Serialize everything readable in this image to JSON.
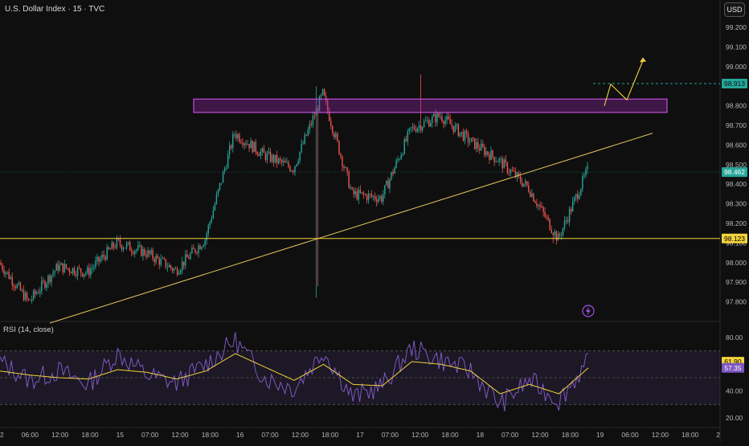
{
  "header": {
    "title": "U.S. Dollar Index · 15 · TVC",
    "currency": "USD"
  },
  "rsi": {
    "title": "RSI (14, close)",
    "levels": [
      80,
      70,
      50,
      30
    ],
    "ticks": [
      "80.00",
      "60.00",
      "40.00",
      "20.00"
    ],
    "value_label": "61.90",
    "ma_label": "57.35",
    "value_color": "#f2d33b",
    "ma_color": "#7e57c2"
  },
  "price_axis": {
    "ticks": [
      "99.200",
      "99.100",
      "99.000",
      "98.900",
      "98.800",
      "98.700",
      "98.600",
      "98.500",
      "98.400",
      "98.300",
      "98.200",
      "98.100",
      "98.000",
      "97.900",
      "97.800"
    ]
  },
  "time_axis": {
    "ticks": [
      "2",
      "06:00",
      "12:00",
      "18:00",
      "15",
      "07:00",
      "12:00",
      "18:00",
      "16",
      "07:00",
      "12:00",
      "18:00",
      "17",
      "07:00",
      "12:00",
      "18:00",
      "18",
      "07:00",
      "12:00",
      "18:00",
      "19",
      "06:00",
      "12:00",
      "18:00",
      "2"
    ]
  },
  "price_labels": {
    "target": "98.913",
    "current": "98.462",
    "support": "98.123"
  },
  "colors": {
    "up": "#26a69a",
    "down": "#ef5350",
    "support_line": "#f2d33b",
    "trend_line": "#e3c460",
    "zone": "#9c27b0",
    "target_tag": "#26a69a",
    "current_tag": "#26a69a"
  },
  "chart_data": [
    {
      "type": "candlestick",
      "title": "U.S. Dollar Index · 15 · TVC",
      "ylim": [
        97.7,
        99.25
      ],
      "close_path": {
        "x": [
          "2",
          "06:00",
          "12:00",
          "18:00",
          "15",
          "07:00",
          "12:00",
          "18:00",
          "16",
          "07:00",
          "12:00",
          "18:00",
          "17",
          "07:00",
          "12:00",
          "18:00",
          "18",
          "07:00",
          "12:00",
          "18:00",
          "19"
        ],
        "y": [
          98.0,
          97.8,
          97.98,
          97.95,
          98.1,
          98.05,
          97.96,
          98.12,
          98.66,
          98.55,
          98.48,
          98.86,
          98.35,
          98.33,
          98.68,
          98.75,
          98.62,
          98.52,
          98.38,
          98.12,
          98.47
        ]
      },
      "annotations": {
        "horizontal_support": 98.123,
        "resistance_zone": [
          98.77,
          98.83
        ],
        "target": 98.913,
        "current": 98.462,
        "trendline": [
          97.7,
          98.66
        ]
      }
    },
    {
      "type": "line",
      "title": "RSI (14, close)",
      "ylim": [
        20,
        85
      ],
      "series": [
        {
          "name": "RSI",
          "values": [
            62,
            48,
            55,
            45,
            68,
            52,
            46,
            60,
            78,
            50,
            42,
            70,
            35,
            44,
            72,
            63,
            55,
            30,
            48,
            33,
            61.9
          ]
        },
        {
          "name": "MA",
          "values": [
            55,
            52,
            50,
            49,
            56,
            54,
            49,
            55,
            68,
            58,
            48,
            60,
            45,
            44,
            62,
            60,
            55,
            38,
            45,
            38,
            57.35
          ]
        }
      ]
    }
  ]
}
